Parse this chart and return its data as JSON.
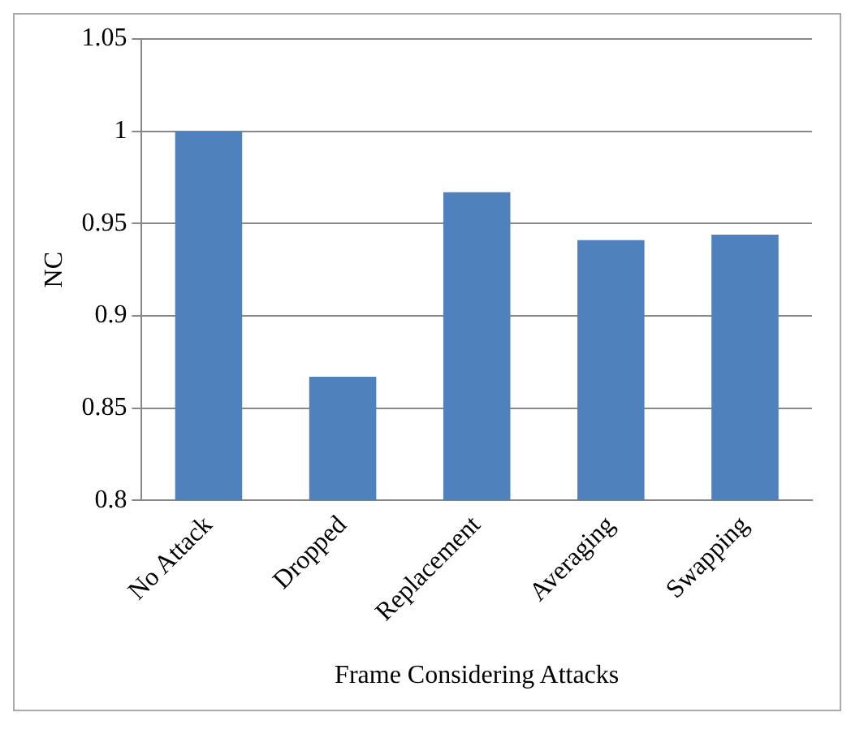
{
  "chart_data": {
    "type": "bar",
    "xlabel": "Frame Considering Attacks",
    "ylabel": "NC",
    "categories": [
      "No Attack",
      "Dropped",
      "Replacement",
      "Averaging",
      "Swapping"
    ],
    "values": [
      1.0,
      0.867,
      0.967,
      0.941,
      0.944
    ],
    "color": "#4f81bd",
    "ylim": [
      0.8,
      1.05
    ],
    "yticks": [
      0.8,
      0.85,
      0.9,
      0.95,
      1,
      1.05
    ],
    "grid": "y",
    "legend": false
  }
}
